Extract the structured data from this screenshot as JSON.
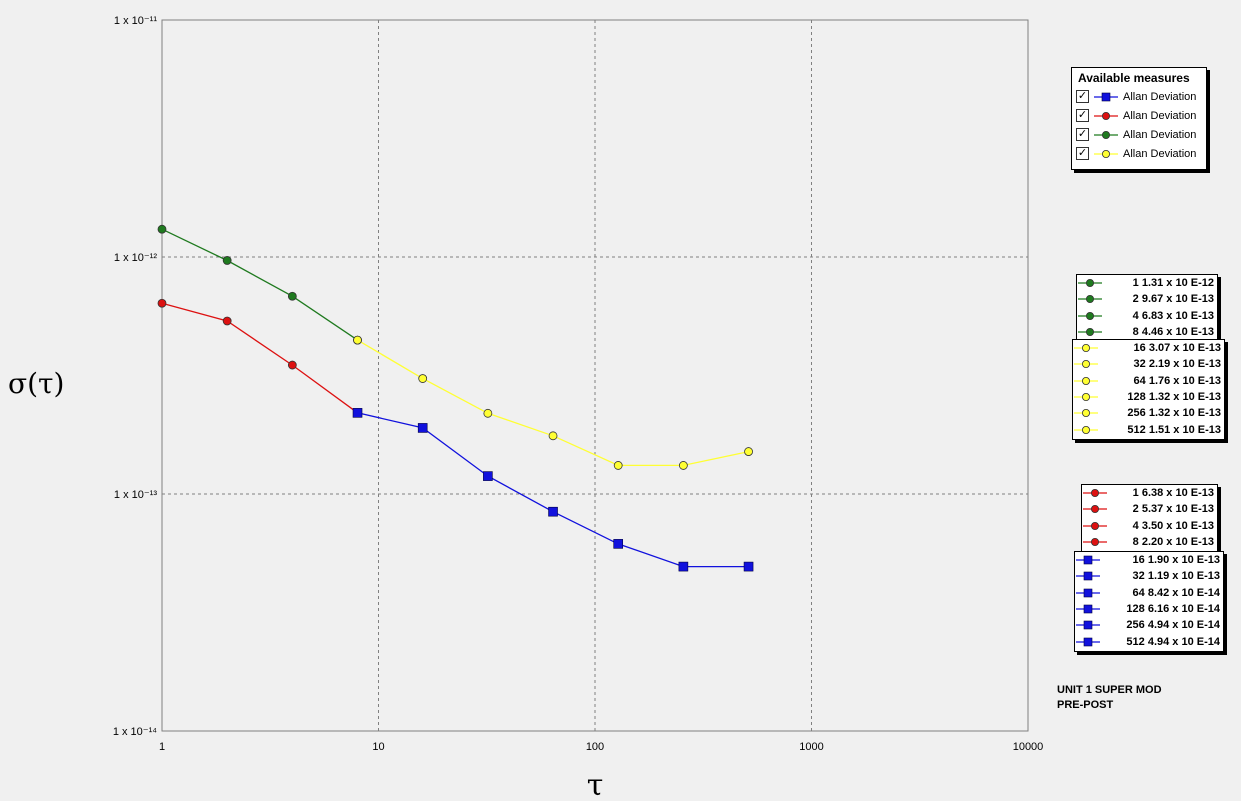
{
  "chart_data": {
    "type": "line",
    "xlabel": "τ",
    "ylabel": "σ(τ)",
    "x_scale": "log",
    "y_scale": "log",
    "xlim": [
      1,
      10000
    ],
    "ylim": [
      1e-14,
      1e-11
    ],
    "grid": true,
    "x_ticks": [
      "1",
      "10",
      "100",
      "1000",
      "10000"
    ],
    "y_ticks": [
      "1 x 10⁻¹¹",
      "1 x 10⁻¹²",
      "1 x 10⁻¹³",
      "1 x 10⁻¹⁴"
    ],
    "series": [
      {
        "color": "#1f7a1f",
        "marker": "circle",
        "x": [
          1,
          2,
          4,
          8
        ],
        "y": [
          1.31e-12,
          9.67e-13,
          6.83e-13,
          4.46e-13
        ]
      },
      {
        "color": "#ffff33",
        "marker": "circle",
        "x": [
          8,
          16,
          32,
          64,
          128,
          256,
          512
        ],
        "y": [
          4.46e-13,
          3.07e-13,
          2.19e-13,
          1.76e-13,
          1.32e-13,
          1.32e-13,
          1.51e-13
        ]
      },
      {
        "color": "#dd1111",
        "marker": "circle",
        "x": [
          1,
          2,
          4,
          8
        ],
        "y": [
          6.38e-13,
          5.37e-13,
          3.5e-13,
          2.2e-13
        ]
      },
      {
        "color": "#1111dd",
        "marker": "square",
        "x": [
          8,
          16,
          32,
          64,
          128,
          256,
          512
        ],
        "y": [
          2.2e-13,
          1.9e-13,
          1.19e-13,
          8.42e-14,
          6.16e-14,
          4.94e-14,
          4.94e-14
        ]
      }
    ]
  },
  "measures_legend": {
    "title": "Available measures",
    "items": [
      {
        "label": "Allan Deviation",
        "color": "#1111dd",
        "marker": "square",
        "checked": "✓"
      },
      {
        "label": "Allan Deviation",
        "color": "#dd1111",
        "marker": "circle",
        "checked": "✓"
      },
      {
        "label": "Allan Deviation",
        "color": "#1f7a1f",
        "marker": "circle",
        "checked": "✓"
      },
      {
        "label": "Allan Deviation",
        "color": "#ffff33",
        "marker": "circle",
        "checked": "✓"
      }
    ]
  },
  "value_boxes": [
    {
      "color": "#1f7a1f",
      "marker": "circle",
      "rows": [
        "1 1.31 x 10 E-12",
        "2 9.67 x 10 E-13",
        "4 6.83 x 10 E-13",
        "8 4.46 x 10 E-13"
      ]
    },
    {
      "color": "#ffff33",
      "marker": "circle",
      "rows": [
        "16 3.07 x 10 E-13",
        "32 2.19 x 10 E-13",
        "64 1.76 x 10 E-13",
        "128 1.32 x 10 E-13",
        "256 1.32 x 10 E-13",
        "512 1.51 x 10 E-13"
      ]
    },
    {
      "color": "#dd1111",
      "marker": "circle",
      "rows": [
        "1 6.38 x 10 E-13",
        "2 5.37 x 10 E-13",
        "4 3.50 x 10 E-13",
        "8 2.20 x 10 E-13"
      ]
    },
    {
      "color": "#1111dd",
      "marker": "square",
      "rows": [
        "16 1.90 x 10 E-13",
        "32 1.19 x 10 E-13",
        "64 8.42 x 10 E-14",
        "128 6.16 x 10 E-14",
        "256 4.94 x 10 E-14",
        "512 4.94 x 10 E-14"
      ]
    }
  ],
  "note": {
    "line1": "UNIT 1 SUPER MOD",
    "line2": "PRE-POST"
  }
}
